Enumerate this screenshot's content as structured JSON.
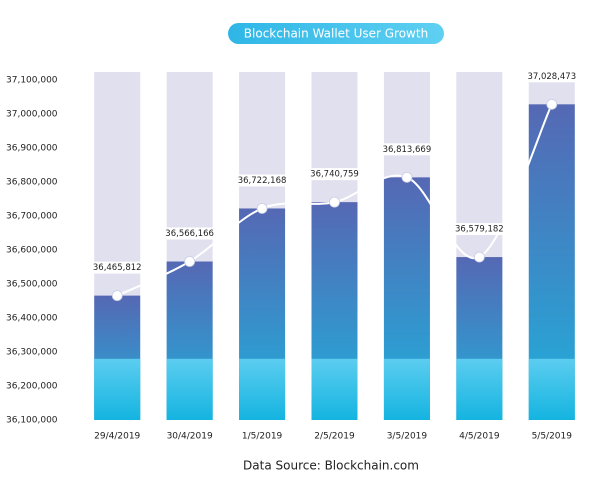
{
  "chart_data": {
    "type": "bar",
    "title": "Blockchain Wallet User Growth",
    "source": "Data Source: Blockchain.com",
    "categories": [
      "29/4/2019",
      "30/4/2019",
      "1/5/2019",
      "2/5/2019",
      "3/5/2019",
      "4/5/2019",
      "5/5/2019"
    ],
    "values": [
      36465812,
      36566166,
      36722168,
      36740759,
      36813669,
      36579182,
      37028473
    ],
    "value_labels": [
      "36,465,812",
      "36,566,166",
      "36,722,168",
      "36,740,759",
      "36,813,669",
      "36,579,182",
      "37,028,473"
    ],
    "color": "#4f6fb8",
    "line_color": "#ffffff",
    "ylim": [
      36100000,
      37100000
    ],
    "yticks": [
      {
        "value": 36100000,
        "label": "36,100,000"
      },
      {
        "value": 36200000,
        "label": "36,200,000"
      },
      {
        "value": 36300000,
        "label": "36,300,000"
      },
      {
        "value": 36400000,
        "label": "36,400,000"
      },
      {
        "value": 36500000,
        "label": "36,500,000"
      },
      {
        "value": 36600000,
        "label": "36,600,000"
      },
      {
        "value": 36700000,
        "label": "36,700,000"
      },
      {
        "value": 36800000,
        "label": "36,800,000"
      },
      {
        "value": 36900000,
        "label": "36,900,000"
      },
      {
        "value": 37000000,
        "label": "37,000,000"
      },
      {
        "value": 37100000,
        "label": "37,100,000"
      }
    ]
  }
}
